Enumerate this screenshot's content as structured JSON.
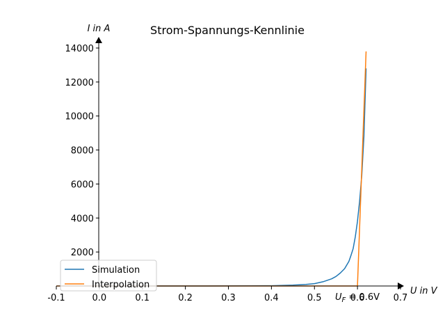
{
  "chart_data": {
    "type": "line",
    "title": "Strom-Spannungs-Kennlinie",
    "xlabel": "U in V",
    "ylabel": "I in A",
    "xlim": [
      -0.1,
      0.7
    ],
    "ylim": [
      0,
      14000
    ],
    "x_ticks": [
      -0.1,
      0.0,
      0.1,
      0.2,
      0.3,
      0.4,
      0.5,
      0.6,
      0.7
    ],
    "x_tick_labels": [
      "-0.1",
      "0.0",
      "0.1",
      "0.2",
      "0.3",
      "0.4",
      "0.5",
      "0.6",
      "0.7"
    ],
    "y_ticks": [
      2000,
      4000,
      6000,
      8000,
      10000,
      12000,
      14000
    ],
    "y_tick_labels": [
      "2000",
      "4000",
      "6000",
      "8000",
      "10000",
      "12000",
      "14000"
    ],
    "grid": false,
    "legend_position": "lower-left",
    "annotation": {
      "prefix": "U",
      "subscript": "F",
      "suffix": " = 0.6V",
      "x": 0.6
    },
    "series": [
      {
        "name": "Simulation",
        "color": "#1f77b4",
        "x": [
          0.0,
          0.05,
          0.1,
          0.15,
          0.2,
          0.25,
          0.3,
          0.35,
          0.4,
          0.45,
          0.48,
          0.5,
          0.52,
          0.54,
          0.55,
          0.56,
          0.57,
          0.58,
          0.585,
          0.59,
          0.595,
          0.6,
          0.605,
          0.61,
          0.615,
          0.62
        ],
        "y": [
          0,
          0,
          0,
          0,
          0,
          1,
          3,
          7,
          18,
          50,
          90,
          140,
          250,
          420,
          560,
          760,
          1020,
          1450,
          1800,
          2200,
          2900,
          3800,
          5000,
          6500,
          8800,
          12800
        ]
      },
      {
        "name": "Interpolation",
        "color": "#ff7f0e",
        "x": [
          -0.1,
          0.6,
          0.62
        ],
        "y": [
          0,
          0,
          13800
        ]
      }
    ]
  }
}
